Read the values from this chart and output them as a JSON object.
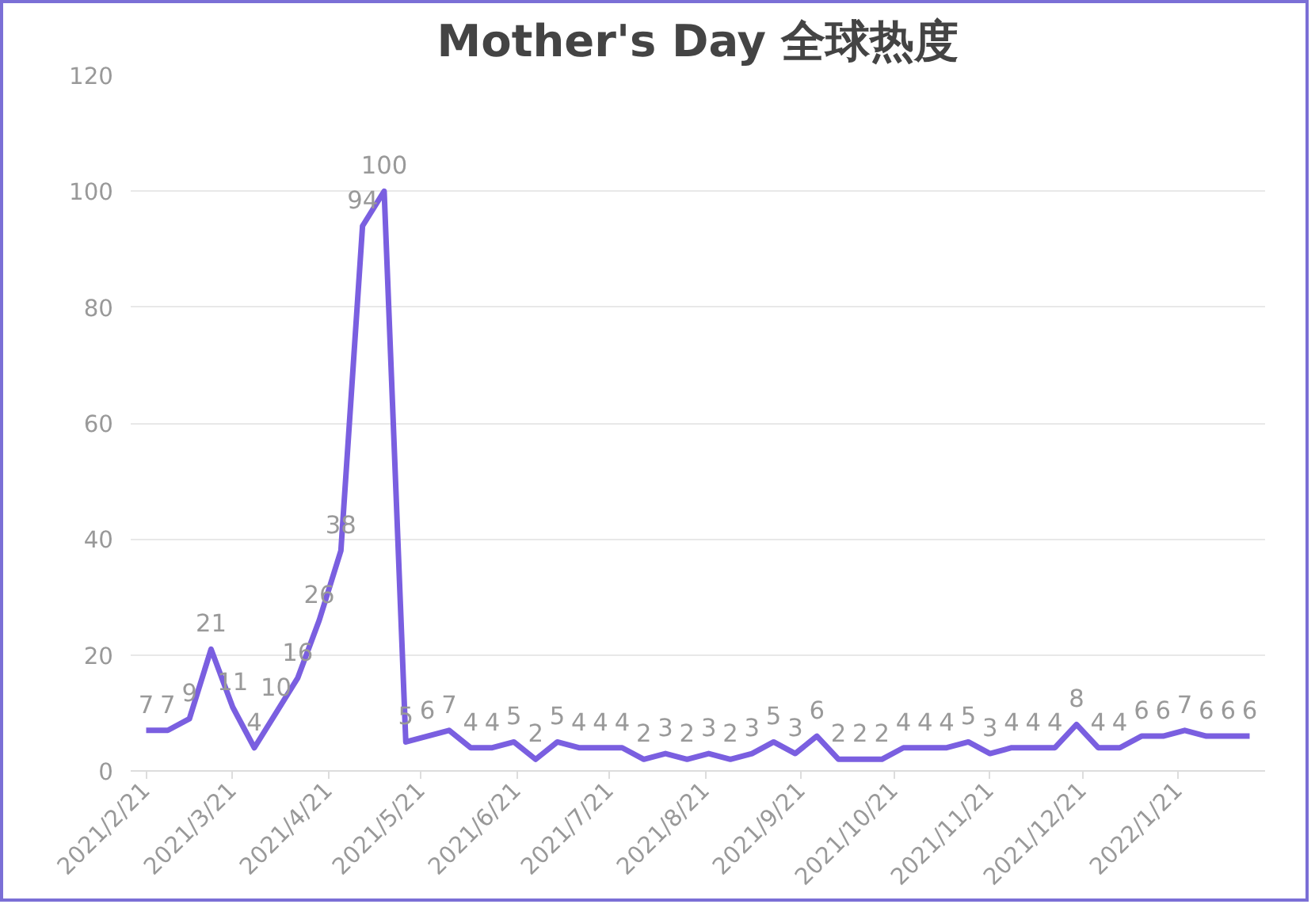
{
  "chart_data": {
    "type": "line",
    "title": "Mother's Day 全球热度",
    "x": [
      "2021-02-21",
      "2021-02-28",
      "2021-03-07",
      "2021-03-14",
      "2021-03-21",
      "2021-03-28",
      "2021-04-04",
      "2021-04-11",
      "2021-04-18",
      "2021-04-25",
      "2021-05-02",
      "2021-05-09",
      "2021-05-16",
      "2021-05-23",
      "2021-05-30",
      "2021-06-06",
      "2021-06-13",
      "2021-06-20",
      "2021-06-27",
      "2021-07-04",
      "2021-07-11",
      "2021-07-18",
      "2021-07-25",
      "2021-08-01",
      "2021-08-08",
      "2021-08-15",
      "2021-08-22",
      "2021-08-29",
      "2021-09-05",
      "2021-09-12",
      "2021-09-19",
      "2021-09-26",
      "2021-10-03",
      "2021-10-10",
      "2021-10-17",
      "2021-10-24",
      "2021-10-31",
      "2021-11-07",
      "2021-11-14",
      "2021-11-21",
      "2021-11-28",
      "2021-12-05",
      "2021-12-12",
      "2021-12-19",
      "2021-12-26",
      "2022-01-02",
      "2022-01-09",
      "2022-01-16",
      "2022-01-23",
      "2022-01-30",
      "2022-02-06",
      "2022-02-13"
    ],
    "series": [
      {
        "color": "#7a5fe0",
        "values": [
          7,
          7,
          9,
          21,
          11,
          4,
          10,
          16,
          26,
          38,
          94,
          100,
          5,
          6,
          7,
          4,
          4,
          5,
          2,
          5,
          4,
          4,
          4,
          2,
          3,
          2,
          3,
          2,
          3,
          5,
          3,
          6,
          2,
          2,
          2,
          4,
          4,
          4,
          5,
          3,
          4,
          4,
          4,
          8,
          4,
          4,
          6,
          6,
          7,
          6,
          6,
          6
        ]
      }
    ],
    "xlim": [
      "2021-02-16",
      "2022-02-18"
    ],
    "xticks": [
      {
        "value": "2021-02-21",
        "label": "2021/2/21"
      },
      {
        "value": "2021-03-21",
        "label": "2021/3/21"
      },
      {
        "value": "2021-04-21",
        "label": "2021/4/21"
      },
      {
        "value": "2021-05-21",
        "label": "2021/5/21"
      },
      {
        "value": "2021-06-21",
        "label": "2021/6/21"
      },
      {
        "value": "2021-07-21",
        "label": "2021/7/21"
      },
      {
        "value": "2021-08-21",
        "label": "2021/8/21"
      },
      {
        "value": "2021-09-21",
        "label": "2021/9/21"
      },
      {
        "value": "2021-10-21",
        "label": "2021/10/21"
      },
      {
        "value": "2021-11-21",
        "label": "2021/11/21"
      },
      {
        "value": "2021-12-21",
        "label": "2021/12/21"
      },
      {
        "value": "2022-01-21",
        "label": "2022/1/21"
      }
    ],
    "ylim": [
      0,
      120
    ],
    "yticks": [
      0,
      20,
      40,
      60,
      80,
      100,
      120
    ],
    "grid": "y",
    "data_labels": true,
    "marker": "none",
    "line_style": "solid"
  }
}
